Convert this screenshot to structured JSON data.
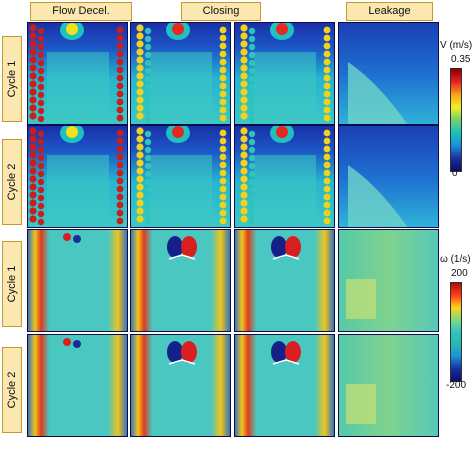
{
  "columns": [
    "Flow Decel.",
    "Closing",
    "Leakage"
  ],
  "rows": [
    "Cycle 1",
    "Cycle 2",
    "Cycle 1",
    "Cycle 2"
  ],
  "velocity_bar": {
    "title": "V (m/s)",
    "max": "0.35",
    "min": "0",
    "colors": [
      "#8b0000",
      "#e82020",
      "#f7a21a",
      "#f3ee22",
      "#6fd36a",
      "#19c3c0",
      "#1b8fd8",
      "#1c2ea0",
      "#0b0b6b"
    ]
  },
  "vorticity_bar": {
    "title": "ω (1/s)",
    "max": "200",
    "min": "-200",
    "colors": [
      "#b20c0c",
      "#ff3d1a",
      "#ffd21a",
      "#7fd97f",
      "#2ec4c0",
      "#27b8b3",
      "#1b90d6",
      "#1630a0",
      "#0f0b70"
    ]
  }
}
